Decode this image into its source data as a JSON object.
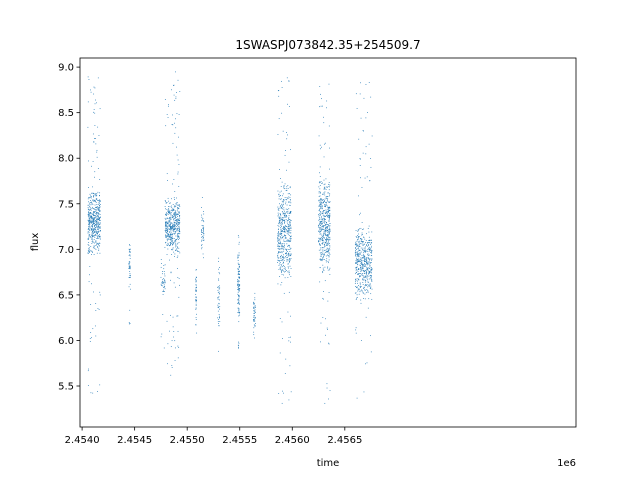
{
  "chart_data": {
    "type": "scatter",
    "title": "1SWASPJ073842.35+254509.7",
    "xlabel": "time",
    "ylabel": "flux",
    "x_offset_label": "1e6",
    "xlim": [
      2453980,
      2458700
    ],
    "ylim": [
      5.05,
      9.1
    ],
    "x_ticks": [
      2454000,
      2454500,
      2455000,
      2455500,
      2456000,
      2456500
    ],
    "x_tick_labels": [
      "2.4540",
      "2.4545",
      "2.4550",
      "2.4555",
      "2.4560",
      "2.4565"
    ],
    "y_ticks": [
      5.5,
      6.0,
      6.5,
      7.0,
      7.5,
      8.0,
      8.5,
      9.0
    ],
    "y_tick_labels": [
      "5.5",
      "6.0",
      "6.5",
      "7.0",
      "7.5",
      "8.0",
      "8.5",
      "9.0"
    ],
    "grid": false,
    "legend": "none",
    "marker_color": "#1f77b4",
    "clusters": [
      {
        "x_range": [
          2454055,
          2454175
        ],
        "y_core": [
          6.9,
          7.7
        ],
        "y_range": [
          5.4,
          8.9
        ],
        "density": "high"
      },
      {
        "x_range": [
          2454445,
          2454460
        ],
        "y_core": [
          6.6,
          7.1
        ],
        "y_range": [
          6.1,
          7.2
        ],
        "density": "low"
      },
      {
        "x_range": [
          2454750,
          2454790
        ],
        "y_core": [
          6.4,
          6.9
        ],
        "y_range": [
          5.9,
          7.1
        ],
        "density": "low"
      },
      {
        "x_range": [
          2454790,
          2454930
        ],
        "y_core": [
          6.9,
          7.6
        ],
        "y_range": [
          5.6,
          8.95
        ],
        "density": "high"
      },
      {
        "x_range": [
          2455080,
          2455090
        ],
        "y_core": [
          6.2,
          6.8
        ],
        "y_range": [
          6.0,
          6.95
        ],
        "density": "low"
      },
      {
        "x_range": [
          2455135,
          2455160
        ],
        "y_core": [
          6.9,
          7.5
        ],
        "y_range": [
          6.85,
          7.6
        ],
        "density": "low"
      },
      {
        "x_range": [
          2455290,
          2455310
        ],
        "y_core": [
          6.0,
          6.9
        ],
        "y_range": [
          5.8,
          7.05
        ],
        "density": "low"
      },
      {
        "x_range": [
          2455480,
          2455500
        ],
        "y_core": [
          6.2,
          7.0
        ],
        "y_range": [
          5.9,
          7.3
        ],
        "density": "medium"
      },
      {
        "x_range": [
          2455630,
          2455650
        ],
        "y_core": [
          6.1,
          6.5
        ],
        "y_range": [
          6.0,
          6.55
        ],
        "density": "low"
      },
      {
        "x_range": [
          2455860,
          2455990
        ],
        "y_core": [
          6.6,
          7.8
        ],
        "y_range": [
          5.25,
          8.9
        ],
        "density": "high"
      },
      {
        "x_range": [
          2456250,
          2456360
        ],
        "y_core": [
          6.7,
          7.8
        ],
        "y_range": [
          5.3,
          8.9
        ],
        "density": "high"
      },
      {
        "x_range": [
          2456600,
          2456760
        ],
        "y_core": [
          6.4,
          7.3
        ],
        "y_range": [
          5.3,
          8.95
        ],
        "density": "high"
      }
    ]
  }
}
